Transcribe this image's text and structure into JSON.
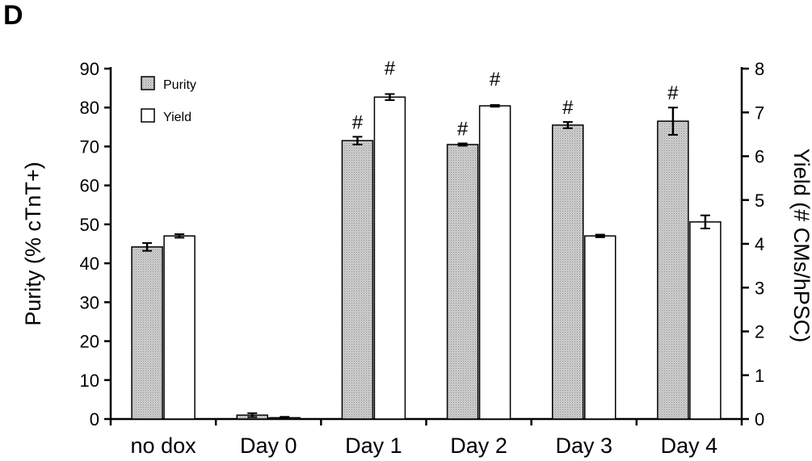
{
  "panel_label": "D",
  "colors": {
    "purity_fill": "#c4c4c4",
    "purity_hatch": "#9a9a9a",
    "yield_fill": "#ffffff",
    "stroke": "#000000"
  },
  "chart_data": {
    "type": "bar",
    "categories": [
      "no dox",
      "Day 0",
      "Day 1",
      "Day 2",
      "Day 3",
      "Day 4"
    ],
    "ylabel_left": "Purity (% cTnT+)",
    "ylabel_right": "Yield (# CMs/hPSC)",
    "ylim_left": [
      0,
      90
    ],
    "ylim_right": [
      0,
      8
    ],
    "yticks_left": [
      0,
      10,
      20,
      30,
      40,
      50,
      60,
      70,
      80,
      90
    ],
    "yticks_right": [
      0,
      1,
      2,
      3,
      4,
      5,
      6,
      7,
      8
    ],
    "legend_position": "top-left",
    "grid": false,
    "series": [
      {
        "name": "Purity",
        "axis": "left",
        "values": [
          44.2,
          1.0,
          71.5,
          70.5,
          75.5,
          76.5
        ],
        "errors": [
          1.0,
          0.5,
          1.0,
          0.3,
          0.8,
          3.5
        ],
        "markers": [
          "",
          "",
          "#",
          "#",
          "#",
          "#"
        ]
      },
      {
        "name": "Yield",
        "axis": "right",
        "values": [
          4.18,
          0.03,
          7.35,
          7.15,
          4.18,
          4.5
        ],
        "errors": [
          0.04,
          0.02,
          0.07,
          0.02,
          0.03,
          0.15
        ],
        "markers": [
          "",
          "",
          "#",
          "#",
          "",
          ""
        ]
      }
    ]
  }
}
